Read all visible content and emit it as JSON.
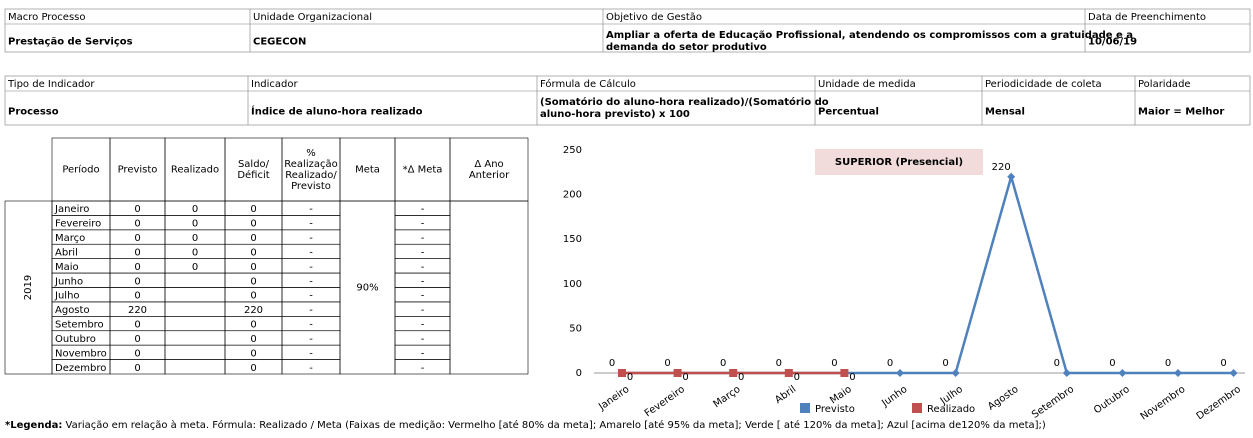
{
  "header": {
    "row1": [
      {
        "label": "Macro Processo",
        "value": "Prestação de Serviços"
      },
      {
        "label": "Unidade Organizacional",
        "value": "CEGECON"
      },
      {
        "label": "Objetivo de Gestão",
        "value": [
          "Ampliar a oferta de Educação Profissional, atendendo os compromissos com a gratuidade e a",
          "demanda do setor produtivo"
        ]
      },
      {
        "label": "Data de Preenchimento",
        "value": "10/06/19"
      }
    ],
    "row2": [
      {
        "label": "Tipo de Indicador",
        "value": "Processo"
      },
      {
        "label": "Indicador",
        "value": "Índice de aluno-hora realizado"
      },
      {
        "label": "Fórmula  de Cálculo",
        "value": [
          "(Somatório do aluno-hora realizado)/(Somatório do",
          "aluno-hora previsto) x 100"
        ]
      },
      {
        "label": "Unidade de medida",
        "value": "Percentual"
      },
      {
        "label": "Periodicidade de coleta",
        "value": "Mensal"
      },
      {
        "label": "Polaridade",
        "value": "Maior = Melhor"
      }
    ]
  },
  "table": {
    "headers": [
      [
        "Período"
      ],
      [
        "Previsto"
      ],
      [
        "Realizado"
      ],
      [
        "Saldo/",
        "Déficit"
      ],
      [
        "%",
        "Realização",
        "Realizado/",
        "Previsto"
      ],
      [
        "Meta"
      ],
      [
        "*Δ Meta"
      ],
      [
        "Δ Ano",
        "Anterior"
      ]
    ],
    "year": "2019",
    "meta": "90%",
    "rows": [
      {
        "periodo": "Janeiro",
        "previsto": 0,
        "realizado": 0,
        "saldo": 0,
        "pct": "-",
        "delta": "-"
      },
      {
        "periodo": "Fevereiro",
        "previsto": 0,
        "realizado": 0,
        "saldo": 0,
        "pct": "-",
        "delta": "-"
      },
      {
        "periodo": "Março",
        "previsto": 0,
        "realizado": 0,
        "saldo": 0,
        "pct": "-",
        "delta": "-"
      },
      {
        "periodo": "Abril",
        "previsto": 0,
        "realizado": 0,
        "saldo": 0,
        "pct": "-",
        "delta": "-"
      },
      {
        "periodo": "Maio",
        "previsto": 0,
        "realizado": 0,
        "saldo": 0,
        "pct": "-",
        "delta": "-"
      },
      {
        "periodo": "Junho",
        "previsto": 0,
        "saldo": 0,
        "pct": "-",
        "delta": "-"
      },
      {
        "periodo": "Julho",
        "previsto": 0,
        "saldo": 0,
        "pct": "-",
        "delta": "-"
      },
      {
        "periodo": "Agosto",
        "previsto": 220,
        "saldo": 220,
        "saldo_color": "#ff0000",
        "pct": "-",
        "delta": "-"
      },
      {
        "periodo": "Setembro",
        "previsto": 0,
        "saldo": 0,
        "pct": "-",
        "delta": "-"
      },
      {
        "periodo": "Outubro",
        "previsto": 0,
        "saldo": 0,
        "pct": "-",
        "delta": "-"
      },
      {
        "periodo": "Novembro",
        "previsto": 0,
        "saldo": 0,
        "pct": "-",
        "delta": "-"
      },
      {
        "periodo": "Dezembro",
        "previsto": 0,
        "saldo": 0,
        "pct": "-",
        "delta": "-"
      }
    ]
  },
  "chart_data": {
    "type": "line",
    "title": "SUPERIOR (Presencial)",
    "categories": [
      "Janeiro",
      "Fevereiro",
      "Março",
      "Abril",
      "Maio",
      "Junho",
      "Julho",
      "Agosto",
      "Setembro",
      "Outubro",
      "Novembro",
      "Dezembro"
    ],
    "series": [
      {
        "name": "Previsto",
        "color": "#4f81bd",
        "values": [
          0,
          0,
          0,
          0,
          0,
          0,
          0,
          220,
          0,
          0,
          0,
          0
        ]
      },
      {
        "name": "Realizado",
        "color": "#c0504d",
        "values": [
          0,
          0,
          0,
          0,
          0,
          null,
          null,
          null,
          null,
          null,
          null,
          null
        ]
      }
    ],
    "ylim": [
      0,
      250
    ],
    "yticks": [
      0,
      50,
      100,
      150,
      200,
      250
    ],
    "legend": "bottom"
  },
  "footnote": {
    "label": "*Legenda:",
    "text": " Variação em relação à meta. Fórmula: Realizado / Meta (Faixas de medição: Vermelho [até 80% da meta]; Amarelo [até 95% da meta]; Verde [ até 120% da meta]; Azul [acima de120% da meta];)"
  }
}
